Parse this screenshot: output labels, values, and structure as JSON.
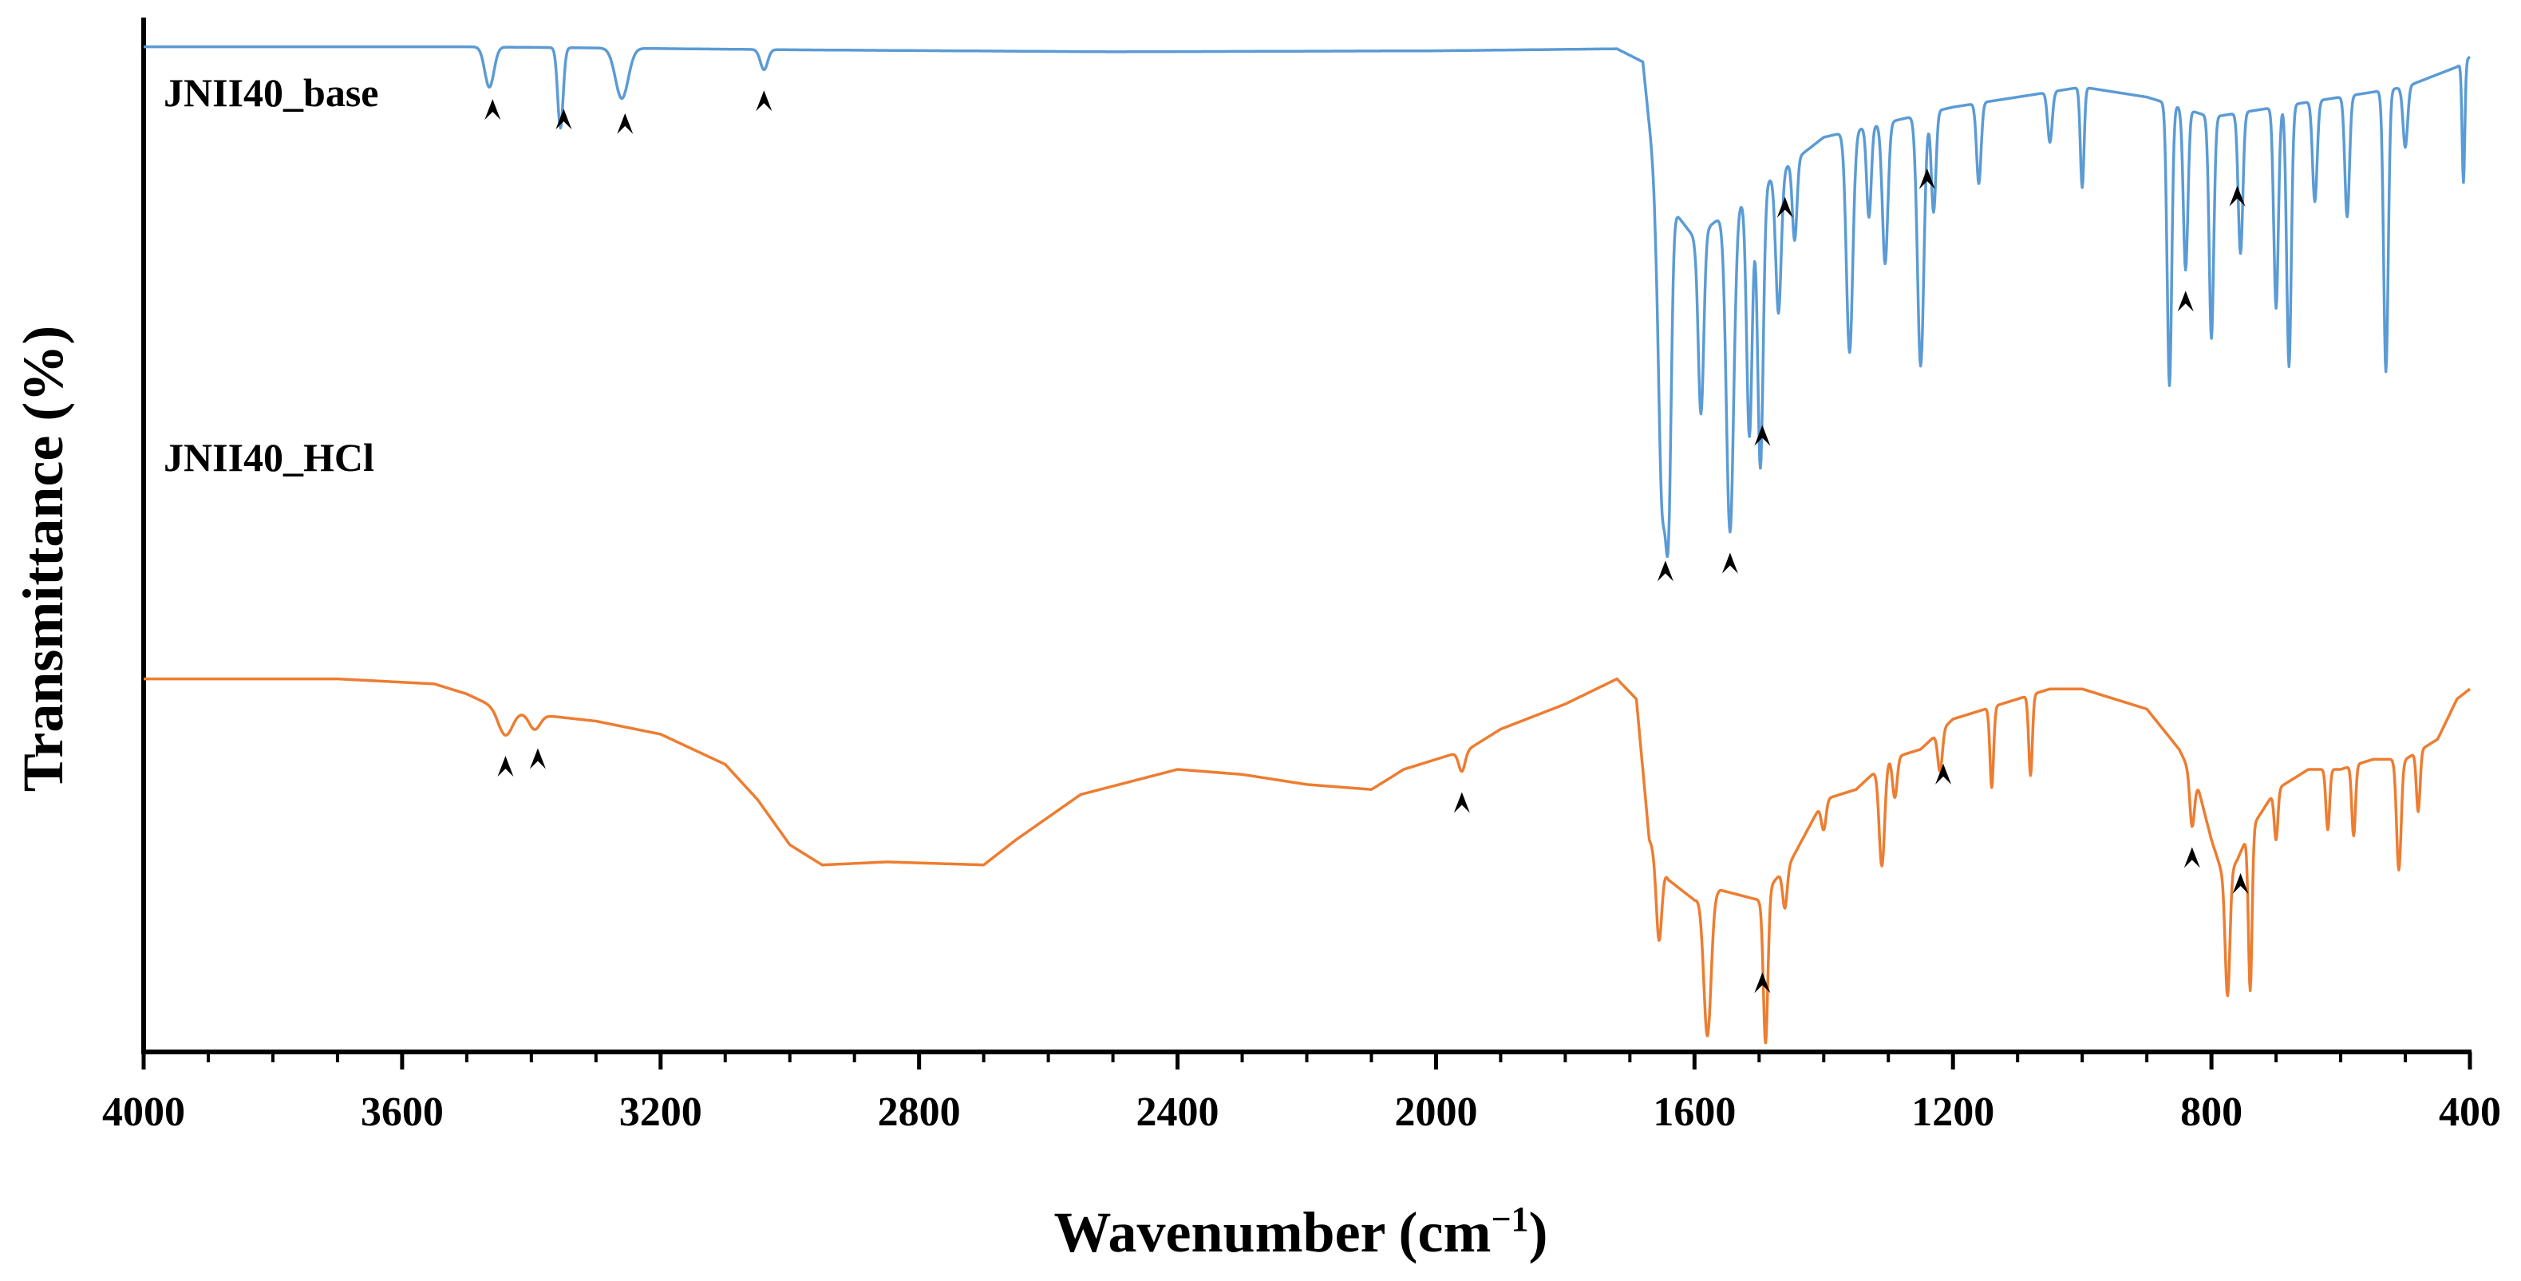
{
  "chart_data": {
    "type": "line",
    "title": "",
    "xlabel": "Wavenumber",
    "xlabel_unit_base": "(cm",
    "xlabel_unit_sup": "−1",
    "xlabel_unit_end": ")",
    "ylabel": "Transmittance (%)",
    "xlim": [
      4000,
      400
    ],
    "x_reversed": true,
    "x_ticks": [
      4000,
      3600,
      3200,
      2800,
      2400,
      2000,
      1600,
      1200,
      800,
      400
    ],
    "x_tick_labels": [
      "4000",
      "3600",
      "3200",
      "2800",
      "2400",
      "2000",
      "1600",
      "1200",
      "800",
      "400"
    ],
    "ylim": [
      0,
      100
    ],
    "y_ticks_shown": false,
    "grid": false,
    "series": [
      {
        "name": "JNII40_base",
        "color": "#5b9bd5",
        "baseline": [
          [
            4000,
            94
          ],
          [
            3700,
            94
          ],
          [
            3500,
            94
          ],
          [
            3000,
            93.7
          ],
          [
            2500,
            93.5
          ],
          [
            2000,
            93.6
          ],
          [
            1720,
            93.8
          ],
          [
            1680,
            92.5
          ],
          [
            1660,
            80
          ],
          [
            1600,
            75
          ],
          [
            1400,
            85
          ],
          [
            1200,
            88
          ],
          [
            1000,
            90
          ],
          [
            900,
            89
          ],
          [
            800,
            87
          ],
          [
            700,
            88
          ],
          [
            600,
            89
          ],
          [
            500,
            90
          ],
          [
            420,
            92
          ],
          [
            400,
            93
          ]
        ],
        "peaks": [
          [
            3465,
            4,
            10
          ],
          [
            3355,
            8,
            6
          ],
          [
            3260,
            5,
            14
          ],
          [
            3040,
            2,
            8
          ],
          [
            1650,
            30,
            8
          ],
          [
            1640,
            27,
            6
          ],
          [
            1590,
            18,
            6
          ],
          [
            1545,
            32,
            8
          ],
          [
            1515,
            24,
            6
          ],
          [
            1498,
            28,
            6
          ],
          [
            1470,
            14,
            6
          ],
          [
            1445,
            8,
            5
          ],
          [
            1360,
            22,
            7
          ],
          [
            1330,
            9,
            5
          ],
          [
            1305,
            14,
            6
          ],
          [
            1250,
            25,
            7
          ],
          [
            1230,
            10,
            5
          ],
          [
            1160,
            8,
            5
          ],
          [
            1050,
            5,
            5
          ],
          [
            1000,
            10,
            4
          ],
          [
            865,
            28,
            5
          ],
          [
            840,
            16,
            5
          ],
          [
            800,
            22,
            5
          ],
          [
            755,
            14,
            5
          ],
          [
            700,
            20,
            5
          ],
          [
            680,
            26,
            5
          ],
          [
            640,
            10,
            5
          ],
          [
            590,
            12,
            5
          ],
          [
            530,
            28,
            5
          ],
          [
            500,
            6,
            5
          ],
          [
            410,
            12,
            3
          ]
        ],
        "markers": [
          3460,
          3350,
          3255,
          3040,
          1645,
          1545,
          1495,
          1460,
          1240,
          840,
          760
        ]
      },
      {
        "name": "JNII40_HCl",
        "color": "#ed7d31",
        "baseline": [
          [
            4000,
            64
          ],
          [
            3700,
            64
          ],
          [
            3550,
            63.5
          ],
          [
            3500,
            62.5
          ],
          [
            3450,
            61
          ],
          [
            3400,
            60.5
          ],
          [
            3300,
            59.8
          ],
          [
            3200,
            58.5
          ],
          [
            3100,
            55.5
          ],
          [
            3050,
            52
          ],
          [
            3000,
            47.5
          ],
          [
            2950,
            45.5
          ],
          [
            2850,
            45.8
          ],
          [
            2700,
            45.5
          ],
          [
            2650,
            48
          ],
          [
            2550,
            52.5
          ],
          [
            2400,
            55
          ],
          [
            2300,
            54.5
          ],
          [
            2200,
            53.5
          ],
          [
            2100,
            53
          ],
          [
            2050,
            55
          ],
          [
            2000,
            56
          ],
          [
            1950,
            57
          ],
          [
            1900,
            59
          ],
          [
            1800,
            61.5
          ],
          [
            1720,
            64
          ],
          [
            1690,
            62
          ],
          [
            1670,
            48
          ],
          [
            1640,
            44
          ],
          [
            1600,
            42
          ],
          [
            1560,
            43
          ],
          [
            1500,
            42
          ],
          [
            1450,
            46
          ],
          [
            1400,
            52
          ],
          [
            1350,
            53
          ],
          [
            1300,
            56
          ],
          [
            1250,
            57
          ],
          [
            1200,
            60
          ],
          [
            1150,
            61
          ],
          [
            1100,
            62
          ],
          [
            1050,
            63
          ],
          [
            1000,
            63
          ],
          [
            950,
            62
          ],
          [
            900,
            61
          ],
          [
            850,
            57
          ],
          [
            820,
            53
          ],
          [
            800,
            48
          ],
          [
            780,
            44
          ],
          [
            760,
            46
          ],
          [
            740,
            49
          ],
          [
            700,
            53
          ],
          [
            650,
            55
          ],
          [
            600,
            55
          ],
          [
            550,
            56
          ],
          [
            500,
            56
          ],
          [
            450,
            58
          ],
          [
            420,
            62
          ],
          [
            400,
            63
          ]
        ],
        "peaks": [
          [
            3440,
            2.5,
            15
          ],
          [
            3395,
            1.5,
            12
          ],
          [
            1960,
            2,
            7
          ],
          [
            1655,
            8,
            6
          ],
          [
            1580,
            14,
            8
          ],
          [
            1490,
            15,
            5
          ],
          [
            1460,
            4,
            5
          ],
          [
            1400,
            3,
            5
          ],
          [
            1310,
            10,
            6
          ],
          [
            1290,
            4,
            5
          ],
          [
            1220,
            4,
            5
          ],
          [
            1140,
            8,
            4
          ],
          [
            1080,
            8,
            4
          ],
          [
            830,
            5,
            5
          ],
          [
            775,
            12,
            5
          ],
          [
            740,
            16,
            4
          ],
          [
            700,
            5,
            4
          ],
          [
            620,
            6,
            4
          ],
          [
            580,
            7,
            4
          ],
          [
            510,
            11,
            5
          ],
          [
            480,
            6,
            4
          ]
        ],
        "markers": [
          3440,
          3390,
          1960,
          1495,
          1215,
          830,
          755
        ]
      }
    ]
  }
}
